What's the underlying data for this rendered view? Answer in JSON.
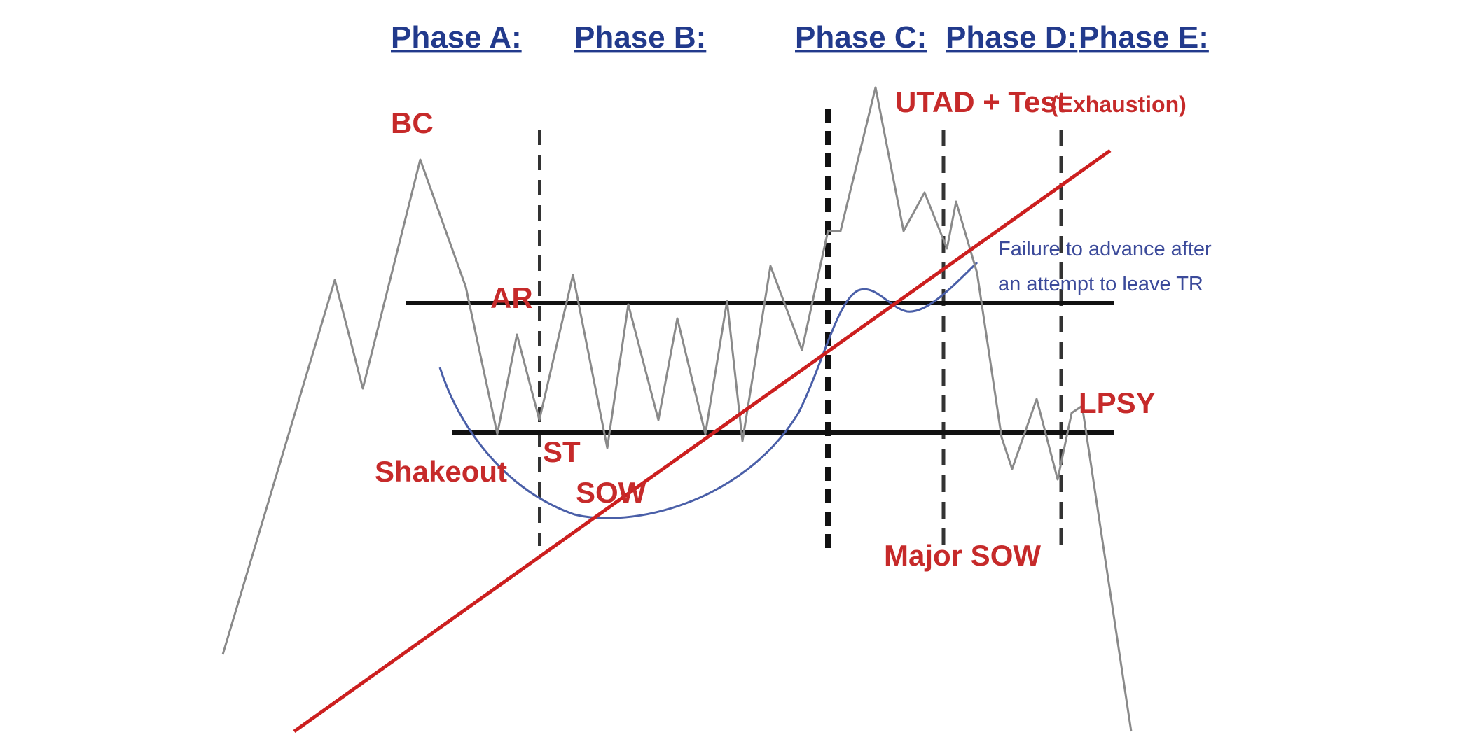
{
  "phases": [
    "Phase A:",
    "Phase B:",
    "Phase C:",
    "Phase D:",
    "Phase E:"
  ],
  "events": {
    "bc": "BC",
    "ar": "AR",
    "st": "ST",
    "shakeout": "Shakeout",
    "sow": "SOW",
    "utad": "UTAD + Test",
    "exhaustion": "(Exhaustion)",
    "major_sow": "Major SOW",
    "lpsy": "LPSY"
  },
  "note": {
    "line1": "Failure to advance after",
    "line2": "an attempt to leave TR"
  },
  "colors": {
    "price": "#8a8a8a",
    "range_lines": "#111111",
    "trend_line": "#cc1f1f",
    "curve": "#4a5fa8",
    "phase_text": "#223a8c",
    "event_text": "#c62a2a"
  }
}
